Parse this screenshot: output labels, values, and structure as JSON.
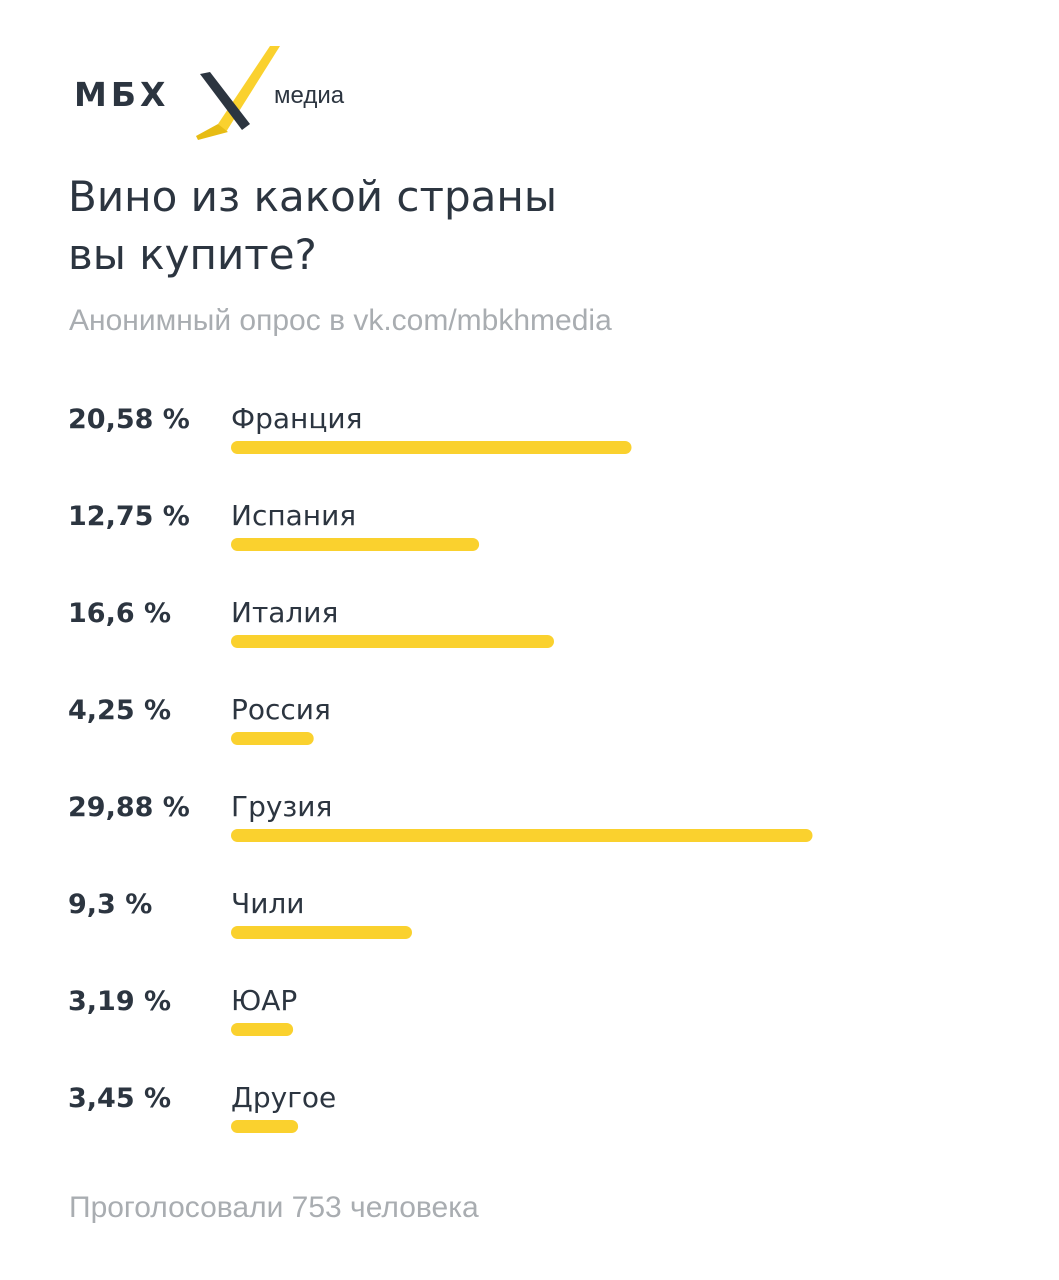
{
  "brand": {
    "name": "МБХ",
    "sub": "медиа",
    "logo_icon": "x-mark-icon",
    "accent_color": "#fad12e",
    "text_color": "#2c3540"
  },
  "header": {
    "title_line1": "Вино из какой страны",
    "title_line2": "вы купите?",
    "subtitle": "Анонимный опрос в vk.com/mbkhmedia"
  },
  "chart_data": {
    "type": "bar",
    "orientation": "horizontal",
    "categories": [
      "Франция",
      "Испания",
      "Италия",
      "Россия",
      "Грузия",
      "Чили",
      "ЮАР",
      "Другое"
    ],
    "values": [
      20.58,
      12.75,
      16.6,
      4.25,
      29.88,
      9.3,
      3.19,
      3.45
    ],
    "value_labels": [
      "20,58 %",
      "12,75 %",
      "16,6 %",
      "4,25 %",
      "29,88 %",
      "9,3 %",
      "3,19 %",
      "3,45 %"
    ],
    "unit": "%",
    "bar_color": "#fad12e",
    "grid": false,
    "legend": "none"
  },
  "footer": {
    "text": "Проголосовали 753 человека"
  }
}
